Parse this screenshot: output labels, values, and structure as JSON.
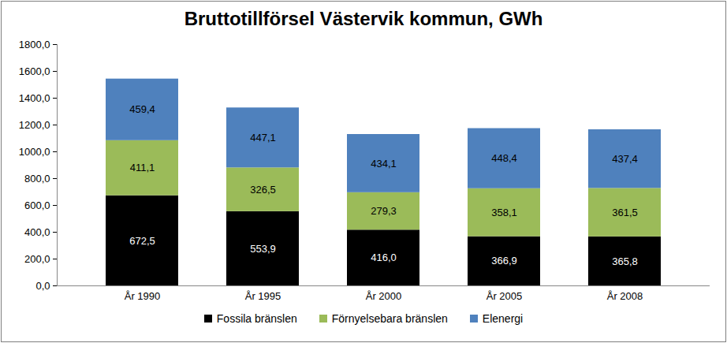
{
  "chart_data": {
    "type": "bar",
    "title": "Bruttotillförsel Västervik kommun, GWh",
    "stacked": true,
    "data_labels": true,
    "grid": false,
    "legend": "bottom",
    "categories": [
      "År 1990",
      "År 1995",
      "År 2000",
      "År 2005",
      "År 2008"
    ],
    "series": [
      {
        "name": "Fossila bränslen",
        "color": "#000000",
        "values": [
          672.5,
          553.9,
          416.0,
          366.9,
          365.8
        ],
        "value_labels": [
          "672,5",
          "553,9",
          "416,0",
          "366,9",
          "365,8"
        ]
      },
      {
        "name": "Förnyelsebara bränslen",
        "color": "#9bbb59",
        "values": [
          411.1,
          326.5,
          279.3,
          358.1,
          361.5
        ],
        "value_labels": [
          "411,1",
          "326,5",
          "279,3",
          "358,1",
          "361,5"
        ]
      },
      {
        "name": "Elenergi",
        "color": "#4f81bd",
        "values": [
          459.4,
          447.1,
          434.1,
          448.4,
          437.4
        ],
        "value_labels": [
          "459,4",
          "447,1",
          "434,1",
          "448,4",
          "437,4"
        ]
      }
    ],
    "ylim": [
      0,
      1800
    ],
    "yticks": [
      {
        "value": 0,
        "label": "0,0"
      },
      {
        "value": 200,
        "label": "200,0"
      },
      {
        "value": 400,
        "label": "400,0"
      },
      {
        "value": 600,
        "label": "600,0"
      },
      {
        "value": 800,
        "label": "800,0"
      },
      {
        "value": 1000,
        "label": "1000,0"
      },
      {
        "value": 1200,
        "label": "1200,0"
      },
      {
        "value": 1400,
        "label": "1400,0"
      },
      {
        "value": 1600,
        "label": "1600,0"
      },
      {
        "value": 1800,
        "label": "1800,0"
      }
    ]
  }
}
